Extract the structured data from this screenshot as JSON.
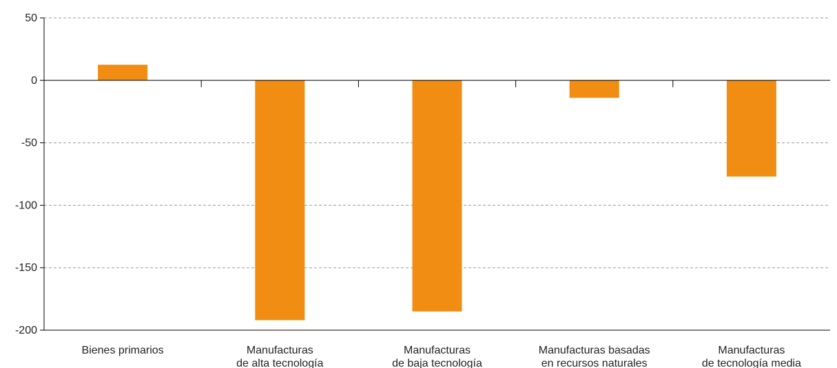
{
  "chart_data": {
    "type": "bar",
    "categories": [
      [
        "Bienes primarios"
      ],
      [
        "Manufacturas",
        "de alta tecnología"
      ],
      [
        "Manufacturas",
        "de baja tecnología"
      ],
      [
        "Manufacturas basadas",
        "en recursos naturales"
      ],
      [
        "Manufacturas",
        "de tecnología media"
      ]
    ],
    "values": [
      12.5,
      -192,
      -185,
      -14,
      -77
    ],
    "ylim": [
      -200,
      50
    ],
    "yticks": [
      50,
      0,
      -50,
      -100,
      -150,
      -200
    ],
    "title": "",
    "xlabel": "",
    "ylabel": "",
    "grid": true,
    "bar_color": "#F18D12"
  }
}
